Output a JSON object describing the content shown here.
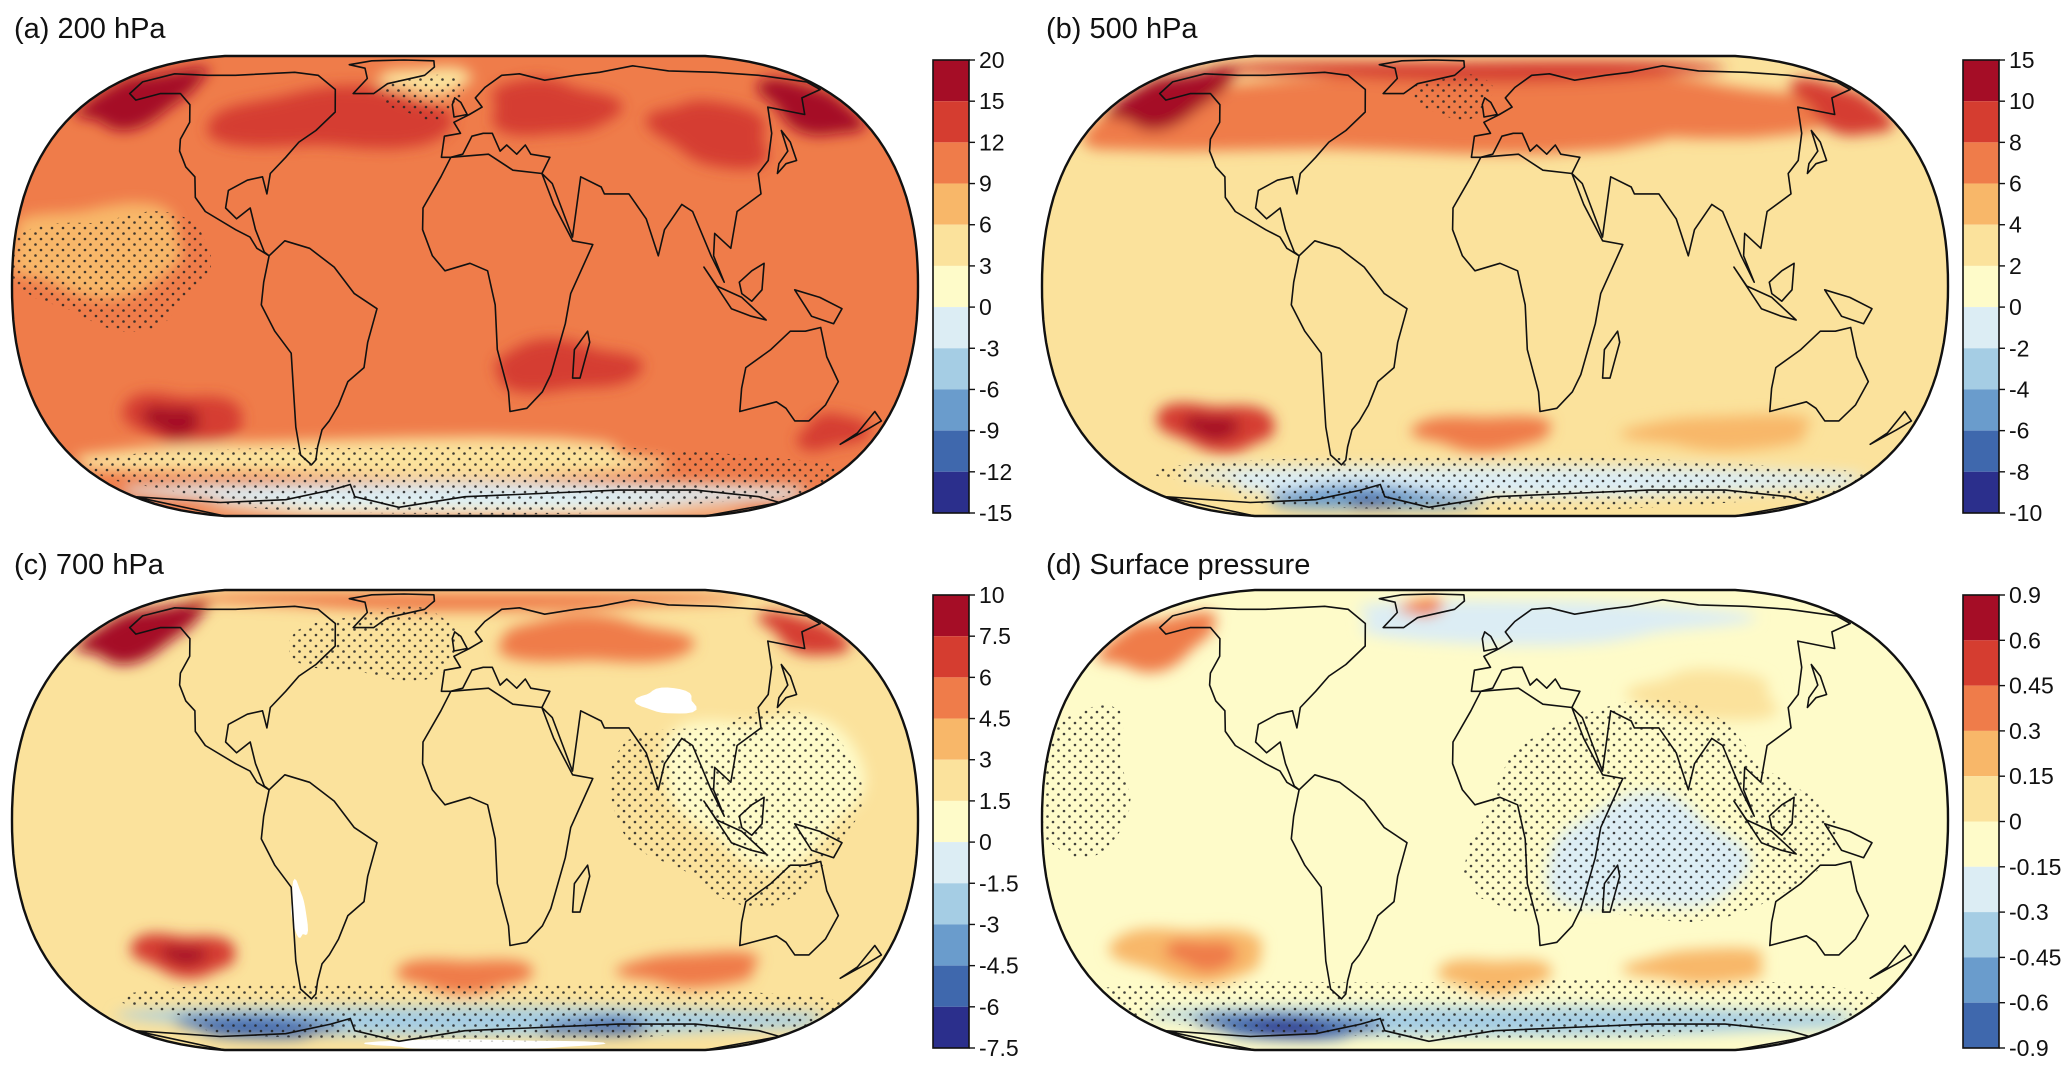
{
  "colors": {
    "palette": [
      "#2b2f8c",
      "#3f68ad",
      "#6a9ccc",
      "#a5cde4",
      "#dcedf4",
      "#fefbc9",
      "#fbe29c",
      "#f8b769",
      "#ef7c4a",
      "#d53d30",
      "#a50d26"
    ],
    "stipple": "#222222",
    "coastline": "#111111",
    "masked": "#ffffff"
  },
  "panels": [
    {
      "id": "a",
      "title": "(a) 200 hPa",
      "colorbar_labels": [
        "20",
        "15",
        "12",
        "9",
        "6",
        "3",
        "0",
        "-3",
        "-6",
        "-9",
        "-12",
        "-15"
      ],
      "background_level": 8,
      "blobs": [
        {
          "lon": -160,
          "lat": 60,
          "rx": 26,
          "ry": 14,
          "level": 10
        },
        {
          "lon": 165,
          "lat": 55,
          "rx": 22,
          "ry": 12,
          "level": 10
        },
        {
          "lon": -60,
          "lat": 50,
          "rx": 55,
          "ry": 12,
          "level": 9
        },
        {
          "lon": 40,
          "lat": 55,
          "rx": 30,
          "ry": 12,
          "level": 9
        },
        {
          "lon": 110,
          "lat": 45,
          "rx": 25,
          "ry": 12,
          "level": 9
        },
        {
          "lon": 40,
          "lat": -22,
          "rx": 30,
          "ry": 7,
          "level": 9
        },
        {
          "lon": -120,
          "lat": -38,
          "rx": 25,
          "ry": 9,
          "level": 9
        },
        {
          "lon": -125,
          "lat": -38,
          "rx": 12,
          "ry": 5,
          "level": 10
        },
        {
          "lon": 160,
          "lat": -42,
          "rx": 15,
          "ry": 6,
          "level": 9
        },
        {
          "lon": -150,
          "lat": 10,
          "rx": 40,
          "ry": 12,
          "level": 7
        },
        {
          "lon": -20,
          "lat": 68,
          "rx": 25,
          "ry": 8,
          "level": 6
        },
        {
          "lon": -40,
          "lat": -52,
          "rx": 140,
          "ry": 8,
          "level": 6
        },
        {
          "lon": 10,
          "lat": -70,
          "rx": 190,
          "ry": 9,
          "level": 4
        },
        {
          "lon": 20,
          "lat": -84,
          "rx": 200,
          "ry": 6,
          "level": 5
        }
      ],
      "stippled_regions": [
        {
          "lon": -140,
          "lat": 5,
          "rx": 40,
          "ry": 15
        },
        {
          "lon": -20,
          "lat": 60,
          "rx": 20,
          "ry": 10
        },
        {
          "lon": 10,
          "lat": -65,
          "rx": 190,
          "ry": 20
        }
      ]
    },
    {
      "id": "b",
      "title": "(b) 500 hPa",
      "colorbar_labels": [
        "15",
        "10",
        "8",
        "6",
        "4",
        "2",
        "0",
        "-2",
        "-4",
        "-6",
        "-8",
        "-10"
      ],
      "background_level": 6,
      "blobs": [
        {
          "lon": -60,
          "lat": 52,
          "rx": 150,
          "ry": 16,
          "level": 8
        },
        {
          "lon": 60,
          "lat": 55,
          "rx": 100,
          "ry": 14,
          "level": 8
        },
        {
          "lon": -160,
          "lat": 60,
          "rx": 26,
          "ry": 14,
          "level": 10
        },
        {
          "lon": 165,
          "lat": 55,
          "rx": 20,
          "ry": 12,
          "level": 9
        },
        {
          "lon": -10,
          "lat": 75,
          "rx": 150,
          "ry": 8,
          "level": 9
        },
        {
          "lon": -20,
          "lat": 68,
          "rx": 22,
          "ry": 8,
          "level": 6
        },
        {
          "lon": -120,
          "lat": -40,
          "rx": 25,
          "ry": 8,
          "level": 9
        },
        {
          "lon": -122,
          "lat": -40,
          "rx": 12,
          "ry": 4,
          "level": 10
        },
        {
          "lon": -5,
          "lat": -42,
          "rx": 30,
          "ry": 6,
          "level": 8
        },
        {
          "lon": 100,
          "lat": -42,
          "rx": 40,
          "ry": 6,
          "level": 7
        },
        {
          "lon": 20,
          "lat": -62,
          "rx": 180,
          "ry": 8,
          "level": 4
        },
        {
          "lon": -70,
          "lat": -72,
          "rx": 60,
          "ry": 8,
          "level": 2
        },
        {
          "lon": -70,
          "lat": -74,
          "rx": 15,
          "ry": 3,
          "level": 0
        }
      ],
      "stippled_regions": [
        {
          "lon": -20,
          "lat": 60,
          "rx": 20,
          "ry": 10
        },
        {
          "lon": 20,
          "lat": -65,
          "rx": 190,
          "ry": 15
        }
      ]
    },
    {
      "id": "c",
      "title": "(c) 700 hPa",
      "colorbar_labels": [
        "10",
        "7.5",
        "6",
        "4.5",
        "3",
        "1.5",
        "0",
        "-1.5",
        "-3",
        "-4.5",
        "-6",
        "-7.5"
      ],
      "background_level": 6,
      "blobs": [
        {
          "lon": -160,
          "lat": 60,
          "rx": 26,
          "ry": 14,
          "level": 10
        },
        {
          "lon": 165,
          "lat": 58,
          "rx": 18,
          "ry": 10,
          "level": 9
        },
        {
          "lon": 0,
          "lat": 78,
          "rx": 170,
          "ry": 8,
          "level": 8
        },
        {
          "lon": 60,
          "lat": 55,
          "rx": 45,
          "ry": 10,
          "level": 8
        },
        {
          "lon": 120,
          "lat": 10,
          "rx": 40,
          "ry": 20,
          "level": 5
        },
        {
          "lon": -120,
          "lat": -38,
          "rx": 22,
          "ry": 7,
          "level": 9
        },
        {
          "lon": -120,
          "lat": -38,
          "rx": 10,
          "ry": 3,
          "level": 10
        },
        {
          "lon": 0,
          "lat": -45,
          "rx": 30,
          "ry": 6,
          "level": 8
        },
        {
          "lon": 100,
          "lat": -43,
          "rx": 30,
          "ry": 6,
          "level": 8
        },
        {
          "lon": 20,
          "lat": -65,
          "rx": 200,
          "ry": 8,
          "level": 3
        },
        {
          "lon": -110,
          "lat": -68,
          "rx": 40,
          "ry": 7,
          "level": 1
        },
        {
          "lon": 70,
          "lat": -68,
          "rx": 30,
          "ry": 5,
          "level": 1
        }
      ],
      "masked_regions": [
        {
          "lon": 85,
          "lat": 33,
          "rx": 12,
          "ry": 4
        },
        {
          "lon": -68,
          "lat": -25,
          "rx": 3,
          "ry": 8
        },
        {
          "lon": 10,
          "lat": -82,
          "rx": 70,
          "ry": 6
        }
      ],
      "stippled_regions": [
        {
          "lon": -40,
          "lat": 55,
          "rx": 40,
          "ry": 15
        },
        {
          "lon": 110,
          "lat": 5,
          "rx": 50,
          "ry": 25
        },
        {
          "lon": 20,
          "lat": -62,
          "rx": 190,
          "ry": 15
        }
      ]
    },
    {
      "id": "d",
      "title": "(d) Surface pressure",
      "colorbar_labels": [
        "0.9",
        "0.6",
        "0.45",
        "0.3",
        "0.15",
        "0",
        "-0.15",
        "-0.3",
        "-0.45",
        "-0.6",
        "-0.9"
      ],
      "background_level": 5,
      "blobs": [
        {
          "lon": -160,
          "lat": 55,
          "rx": 25,
          "ry": 12,
          "level": 8
        },
        {
          "lon": -40,
          "lat": 72,
          "rx": 12,
          "ry": 6,
          "level": 8
        },
        {
          "lon": 90,
          "lat": 35,
          "rx": 30,
          "ry": 8,
          "level": 6
        },
        {
          "lon": 60,
          "lat": -10,
          "rx": 40,
          "ry": 15,
          "level": 4
        },
        {
          "lon": 20,
          "lat": 65,
          "rx": 100,
          "ry": 12,
          "level": 4
        },
        {
          "lon": -130,
          "lat": -38,
          "rx": 32,
          "ry": 9,
          "level": 7
        },
        {
          "lon": -125,
          "lat": -38,
          "rx": 15,
          "ry": 5,
          "level": 8
        },
        {
          "lon": 0,
          "lat": -45,
          "rx": 25,
          "ry": 6,
          "level": 7
        },
        {
          "lon": 90,
          "lat": -42,
          "rx": 30,
          "ry": 6,
          "level": 7
        },
        {
          "lon": 20,
          "lat": -65,
          "rx": 200,
          "ry": 8,
          "level": 3
        },
        {
          "lon": -110,
          "lat": -68,
          "rx": 45,
          "ry": 8,
          "level": 1
        },
        {
          "lon": -110,
          "lat": -68,
          "rx": 20,
          "ry": 4,
          "level": 0
        }
      ],
      "stippled_regions": [
        {
          "lon": -170,
          "lat": 10,
          "rx": 25,
          "ry": 20
        },
        {
          "lon": 60,
          "lat": 0,
          "rx": 70,
          "ry": 30
        },
        {
          "lon": 0,
          "lat": -60,
          "rx": 200,
          "ry": 15
        }
      ]
    }
  ]
}
